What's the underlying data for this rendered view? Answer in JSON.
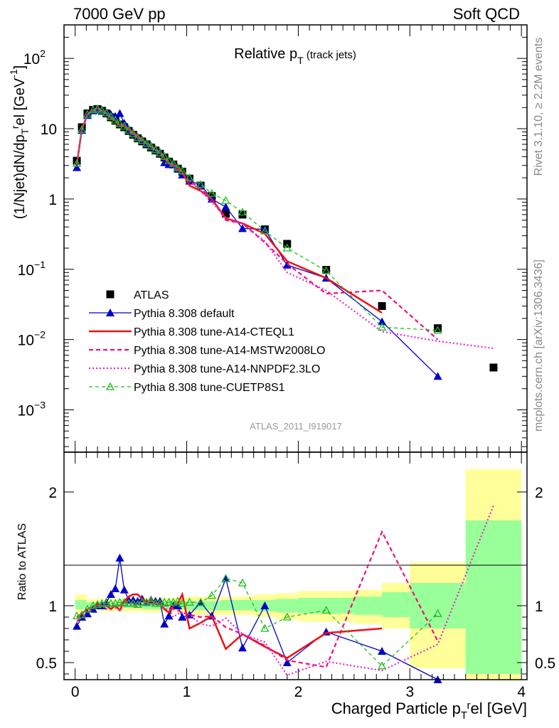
{
  "header": {
    "left": "7000 GeV pp",
    "right": "Soft QCD"
  },
  "side_labels": {
    "rivet": "Rivet 3.1.10, ≥ 2.2M events",
    "mcplots": "mcplots.cern.ch [arXiv:1306.3436]"
  },
  "colors": {
    "data": "#000000",
    "default": "#0000cc",
    "cteql1": "#ee1111",
    "mstw": "#ee1177",
    "nnpdf": "#ee22cc",
    "cuetp": "#22bb22",
    "band_inner": "#99ff99",
    "band_outer": "#ffff99"
  },
  "chart_data": [
    {
      "type": "scatter",
      "title": "Relative p_T (track jets)",
      "ylabel": "(1/Njet)dN/dp_T^rel [GeV^-1]",
      "yscale": "log",
      "ylim": [
        0.00025,
        300
      ],
      "xlim": [
        -0.1,
        4.05
      ],
      "y_ticks": [
        "10^-3",
        "10^-2",
        "10^-1",
        "1",
        "10",
        "10^2"
      ],
      "watermark": "ATLAS_2011_I919017",
      "legend_position": "lower-left",
      "series": [
        {
          "name": "ATLAS",
          "key": "data",
          "style": "marker",
          "x": [
            0.015,
            0.06,
            0.11,
            0.16,
            0.2,
            0.24,
            0.28,
            0.32,
            0.36,
            0.4,
            0.44,
            0.48,
            0.52,
            0.56,
            0.6,
            0.64,
            0.68,
            0.72,
            0.76,
            0.8,
            0.84,
            0.88,
            0.92,
            0.96,
            1.025,
            1.125,
            1.225,
            1.35,
            1.5,
            1.7,
            1.9,
            2.25,
            2.75,
            3.25,
            3.75
          ],
          "y": [
            3.5,
            10.5,
            16.5,
            18.5,
            19,
            18,
            16.5,
            14.5,
            13,
            11.5,
            10.5,
            9.3,
            8.2,
            7.3,
            6.6,
            6,
            5.4,
            4.9,
            4.4,
            3.9,
            3.4,
            3.1,
            2.7,
            2.45,
            1.95,
            1.55,
            1.1,
            0.62,
            0.6,
            0.37,
            0.23,
            0.098,
            0.03,
            0.0145,
            0.004
          ]
        },
        {
          "name": "Pythia 8.308 default",
          "key": "default",
          "style": "solid",
          "x": [
            0.015,
            0.06,
            0.11,
            0.16,
            0.2,
            0.24,
            0.28,
            0.32,
            0.36,
            0.4,
            0.44,
            0.48,
            0.52,
            0.56,
            0.6,
            0.64,
            0.68,
            0.72,
            0.76,
            0.8,
            0.84,
            0.88,
            0.92,
            0.96,
            1.025,
            1.125,
            1.225,
            1.35,
            1.5,
            1.7,
            1.9,
            2.25,
            2.75,
            3.25
          ],
          "y": [
            2.8,
            9.5,
            15.5,
            18,
            19,
            18,
            17,
            16,
            15,
            16.5,
            12,
            9.8,
            8.6,
            7.6,
            7,
            6.2,
            5.7,
            5.1,
            4.6,
            3.3,
            3.1,
            3.1,
            2.7,
            2.2,
            1.8,
            1.6,
            1.0,
            0.77,
            0.38,
            0.37,
            0.115,
            0.075,
            0.018,
            0.003
          ]
        },
        {
          "name": "Pythia 8.308 tune-A14-CTEQL1",
          "key": "cteql1",
          "style": "solid",
          "x": [
            0.015,
            0.06,
            0.11,
            0.16,
            0.2,
            0.24,
            0.28,
            0.32,
            0.36,
            0.4,
            0.44,
            0.48,
            0.52,
            0.56,
            0.6,
            0.64,
            0.68,
            0.72,
            0.76,
            0.8,
            0.84,
            0.88,
            0.92,
            0.96,
            1.025,
            1.125,
            1.225,
            1.35,
            1.5,
            1.7,
            1.9,
            2.25,
            2.75
          ],
          "y": [
            3.2,
            9.8,
            16,
            18,
            19.5,
            18,
            16.5,
            14,
            13,
            11,
            11,
            10,
            9,
            8,
            7,
            6.2,
            5.7,
            5,
            4.5,
            3.8,
            3.2,
            3.1,
            2.8,
            2.4,
            1.55,
            1.3,
            1.0,
            0.53,
            0.45,
            0.32,
            0.13,
            0.075,
            0.024
          ]
        },
        {
          "name": "Pythia 8.308 tune-A14-MSTW2008LO",
          "key": "mstw",
          "style": "dashed",
          "x": [
            0.015,
            0.06,
            0.11,
            0.16,
            0.2,
            0.24,
            0.28,
            0.32,
            0.36,
            0.4,
            0.44,
            0.48,
            0.52,
            0.56,
            0.6,
            0.64,
            0.68,
            0.72,
            0.76,
            0.8,
            0.84,
            0.88,
            0.92,
            0.96,
            1.025,
            1.125,
            1.225,
            1.35,
            1.5,
            1.7,
            1.9,
            2.25,
            2.75,
            3.25
          ],
          "y": [
            3.0,
            9.5,
            15.5,
            18,
            19.5,
            18,
            16.5,
            14.5,
            13,
            11.5,
            11,
            9.6,
            8.4,
            7.5,
            6.8,
            6.2,
            5.5,
            5,
            4.5,
            3.9,
            3.4,
            3.0,
            2.6,
            2.3,
            1.8,
            1.4,
            1.0,
            0.5,
            0.45,
            0.24,
            0.12,
            0.045,
            0.05,
            0.01
          ]
        },
        {
          "name": "Pythia 8.308 tune-A14-NNPDF2.3LO",
          "key": "nnpdf",
          "style": "dotted",
          "x": [
            0.015,
            0.06,
            0.11,
            0.16,
            0.2,
            0.24,
            0.28,
            0.32,
            0.36,
            0.4,
            0.44,
            0.48,
            0.52,
            0.56,
            0.6,
            0.64,
            0.68,
            0.72,
            0.76,
            0.8,
            0.84,
            0.88,
            0.92,
            0.96,
            1.025,
            1.125,
            1.225,
            1.35,
            1.5,
            1.7,
            1.9,
            2.25,
            2.75,
            3.25,
            3.75
          ],
          "y": [
            3.1,
            9.8,
            16,
            18.5,
            19,
            18,
            16,
            14.5,
            12.8,
            11,
            10.5,
            9.5,
            8.3,
            7.2,
            6.6,
            6.1,
            5.5,
            4.9,
            4.4,
            3.8,
            3.3,
            2.8,
            2.5,
            2.3,
            1.8,
            1.3,
            0.9,
            0.55,
            0.45,
            0.25,
            0.09,
            0.05,
            0.013,
            0.0095,
            0.0075
          ]
        },
        {
          "name": "Pythia 8.308 tune-CUETP8S1",
          "key": "cuetp",
          "style": "dashed-open",
          "x": [
            0.015,
            0.06,
            0.11,
            0.16,
            0.2,
            0.24,
            0.28,
            0.32,
            0.36,
            0.4,
            0.44,
            0.48,
            0.52,
            0.56,
            0.6,
            0.64,
            0.68,
            0.72,
            0.76,
            0.8,
            0.84,
            0.88,
            0.92,
            0.96,
            1.025,
            1.125,
            1.225,
            1.35,
            1.5,
            1.7,
            1.9,
            2.25,
            2.75,
            3.25
          ],
          "y": [
            3.2,
            9.7,
            16,
            18.5,
            19.2,
            18.3,
            16.8,
            14.8,
            13.2,
            11.8,
            10.8,
            9.5,
            8.4,
            7.4,
            6.8,
            6.2,
            5.6,
            5.0,
            4.5,
            4.0,
            3.5,
            3.2,
            2.8,
            2.5,
            2.0,
            1.6,
            1.2,
            0.95,
            0.65,
            0.35,
            0.2,
            0.095,
            0.015,
            0.0135
          ]
        }
      ]
    },
    {
      "type": "scatter",
      "ylabel": "Ratio to ATLAS",
      "xlabel": "Charged Particle p_T^rel [GeV]",
      "ylim": [
        0.35,
        2.35
      ],
      "xlim": [
        -0.1,
        4.05
      ],
      "x_ticks": [
        "0",
        "1",
        "2",
        "3",
        "4"
      ],
      "y_ticks": [
        "0.5",
        "1",
        "2"
      ],
      "uncertainty_band": {
        "x_low": [
          0.0,
          0.1,
          0.6,
          1.0,
          1.3,
          1.6,
          1.8,
          2.0,
          2.5,
          2.75,
          3.0,
          3.5
        ],
        "x_high": [
          0.1,
          0.6,
          1.0,
          1.3,
          1.6,
          1.8,
          2.0,
          2.5,
          2.75,
          3.0,
          3.5,
          4.0
        ],
        "inner_low": [
          0.97,
          0.98,
          0.97,
          0.96,
          0.96,
          0.95,
          0.94,
          0.93,
          0.92,
          0.9,
          0.8,
          0.4
        ],
        "inner_high": [
          1.05,
          1.03,
          1.04,
          1.04,
          1.05,
          1.05,
          1.06,
          1.07,
          1.08,
          1.12,
          1.2,
          1.75
        ],
        "outer_low": [
          0.93,
          0.95,
          0.94,
          0.92,
          0.92,
          0.9,
          0.88,
          0.86,
          0.84,
          0.8,
          0.45,
          0.35
        ],
        "outer_high": [
          1.1,
          1.06,
          1.07,
          1.08,
          1.08,
          1.1,
          1.11,
          1.13,
          1.14,
          1.2,
          1.38,
          2.2
        ]
      },
      "series": [
        {
          "key": "default",
          "x": [
            0.015,
            0.06,
            0.11,
            0.16,
            0.2,
            0.24,
            0.28,
            0.32,
            0.36,
            0.4,
            0.44,
            0.48,
            0.52,
            0.56,
            0.6,
            0.64,
            0.68,
            0.72,
            0.76,
            0.8,
            0.84,
            0.88,
            0.92,
            0.96,
            1.025,
            1.125,
            1.225,
            1.35,
            1.5,
            1.7,
            1.9,
            2.25,
            2.75,
            3.25
          ],
          "y": [
            0.82,
            0.9,
            0.93,
            0.97,
            1.0,
            1.0,
            1.03,
            1.1,
            1.15,
            1.42,
            1.14,
            1.05,
            1.05,
            1.04,
            1.06,
            1.03,
            1.05,
            1.04,
            1.04,
            0.84,
            0.91,
            1.0,
            1.0,
            0.9,
            0.92,
            1.03,
            0.91,
            1.24,
            0.63,
            1.0,
            0.5,
            0.77,
            0.6,
            0.3
          ]
        },
        {
          "key": "cteql1",
          "x": [
            0.015,
            0.06,
            0.11,
            0.16,
            0.2,
            0.24,
            0.28,
            0.32,
            0.36,
            0.4,
            0.44,
            0.48,
            0.52,
            0.56,
            0.6,
            0.64,
            0.68,
            0.72,
            0.76,
            0.8,
            0.84,
            0.88,
            0.92,
            0.96,
            1.025,
            1.125,
            1.225,
            1.35,
            1.5,
            1.7,
            1.9,
            2.25,
            2.75
          ],
          "y": [
            0.9,
            0.93,
            0.97,
            0.98,
            1.02,
            1.0,
            1.0,
            0.97,
            1.0,
            0.96,
            1.04,
            1.08,
            1.1,
            1.1,
            1.06,
            1.03,
            1.05,
            1.02,
            1.02,
            0.97,
            0.94,
            1.0,
            1.02,
            1.1,
            0.8,
            0.85,
            0.91,
            0.62,
            0.75,
            0.64,
            0.54,
            0.76,
            0.8
          ]
        },
        {
          "key": "mstw",
          "x": [
            0.015,
            0.06,
            0.11,
            0.16,
            0.2,
            0.24,
            0.28,
            0.32,
            0.36,
            0.4,
            0.44,
            0.48,
            0.52,
            0.56,
            0.6,
            0.64,
            0.68,
            0.72,
            0.76,
            0.8,
            0.84,
            0.88,
            0.92,
            0.96,
            1.025,
            1.125,
            1.225,
            1.35,
            1.5,
            1.7,
            1.9,
            2.25,
            2.75,
            3.25
          ],
          "y": [
            0.86,
            0.9,
            0.94,
            0.97,
            1.02,
            1.0,
            1.0,
            1.0,
            1.0,
            1.0,
            1.05,
            1.03,
            1.02,
            1.03,
            1.03,
            1.03,
            1.02,
            1.02,
            1.02,
            1.0,
            1.0,
            0.97,
            0.96,
            0.94,
            0.92,
            0.9,
            0.91,
            0.81,
            0.75,
            0.65,
            0.52,
            0.46,
            1.65,
            0.69
          ]
        },
        {
          "key": "nnpdf",
          "x": [
            0.015,
            0.06,
            0.11,
            0.16,
            0.2,
            0.24,
            0.28,
            0.32,
            0.36,
            0.4,
            0.44,
            0.48,
            0.52,
            0.56,
            0.6,
            0.64,
            0.68,
            0.72,
            0.76,
            0.8,
            0.84,
            0.88,
            0.92,
            0.96,
            1.025,
            1.125,
            1.225,
            1.35,
            1.5,
            1.7,
            1.9,
            2.25,
            2.75,
            3.25,
            3.75
          ],
          "y": [
            0.88,
            0.93,
            0.97,
            1.0,
            1.0,
            1.0,
            0.97,
            1.0,
            0.98,
            0.96,
            1.0,
            1.02,
            1.01,
            0.99,
            1.0,
            1.02,
            1.02,
            1.0,
            1.0,
            0.97,
            0.97,
            0.9,
            0.93,
            0.94,
            0.92,
            0.84,
            0.82,
            0.89,
            0.75,
            0.68,
            0.39,
            0.51,
            0.43,
            0.66,
            1.88
          ]
        },
        {
          "key": "cuetp",
          "x": [
            0.015,
            0.06,
            0.11,
            0.16,
            0.2,
            0.24,
            0.28,
            0.32,
            0.36,
            0.4,
            0.44,
            0.48,
            0.52,
            0.56,
            0.6,
            0.64,
            0.68,
            0.72,
            0.76,
            0.8,
            0.84,
            0.88,
            0.92,
            0.96,
            1.025,
            1.125,
            1.225,
            1.35,
            1.5,
            1.7,
            1.9,
            2.25,
            2.75,
            3.25
          ],
          "y": [
            0.91,
            0.92,
            0.97,
            1.0,
            1.01,
            1.02,
            1.02,
            1.02,
            1.02,
            1.03,
            1.03,
            1.02,
            1.02,
            1.01,
            1.03,
            1.03,
            1.04,
            1.02,
            1.02,
            1.03,
            1.03,
            1.03,
            1.04,
            1.02,
            1.03,
            1.03,
            1.09,
            1.24,
            1.2,
            0.8,
            0.9,
            0.96,
            0.47,
            0.93
          ]
        }
      ]
    }
  ]
}
